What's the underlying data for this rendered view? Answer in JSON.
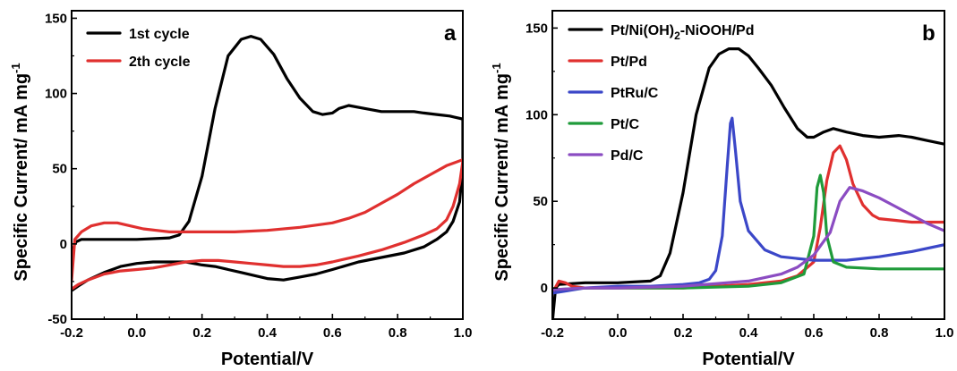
{
  "chart_data": [
    {
      "type": "line",
      "panel_label": "a",
      "xlabel": "Potential/V",
      "ylabel": "Specific Current/ mA mg",
      "ylabel_sup": "-1",
      "xlim": [
        -0.2,
        1.0
      ],
      "ylim": [
        -50,
        155
      ],
      "xticks": [
        -0.2,
        0.0,
        0.2,
        0.4,
        0.6,
        0.8,
        1.0
      ],
      "xtick_labels": [
        "-0.2",
        "0.0",
        "0.2",
        "0.4",
        "0.6",
        "0.8",
        "1.0"
      ],
      "yticks": [
        -50,
        0,
        50,
        100,
        150
      ],
      "ytick_labels": [
        "-50",
        "0",
        "50",
        "100",
        "150"
      ],
      "legend_position": "top-left",
      "series": [
        {
          "name": "1st cycle",
          "color": "#000000",
          "x": [
            -0.2,
            -0.19,
            -0.17,
            -0.1,
            0.0,
            0.1,
            0.13,
            0.16,
            0.2,
            0.24,
            0.28,
            0.32,
            0.35,
            0.38,
            0.42,
            0.46,
            0.5,
            0.54,
            0.57,
            0.6,
            0.62,
            0.65,
            0.7,
            0.75,
            0.8,
            0.85,
            0.88,
            0.92,
            0.96,
            1.0,
            1.0,
            0.99,
            0.97,
            0.95,
            0.92,
            0.88,
            0.82,
            0.75,
            0.68,
            0.6,
            0.55,
            0.5,
            0.45,
            0.4,
            0.36,
            0.32,
            0.28,
            0.24,
            0.2,
            0.15,
            0.1,
            0.05,
            0.0,
            -0.05,
            -0.1,
            -0.15,
            -0.18,
            -0.2
          ],
          "y": [
            -10,
            1,
            3,
            3,
            3,
            4,
            6,
            15,
            45,
            90,
            125,
            136,
            138,
            136,
            126,
            110,
            97,
            88,
            86,
            87,
            90,
            92,
            90,
            88,
            88,
            88,
            87,
            86,
            85,
            83,
            52,
            28,
            15,
            8,
            3,
            -2,
            -6,
            -9,
            -12,
            -17,
            -20,
            -22,
            -24,
            -23,
            -21,
            -19,
            -17,
            -15,
            -14,
            -12,
            -12,
            -12,
            -13,
            -15,
            -19,
            -24,
            -28,
            -31
          ]
        },
        {
          "name": "2th cycle",
          "color": "#e0302f",
          "x": [
            -0.2,
            -0.19,
            -0.17,
            -0.14,
            -0.1,
            -0.06,
            -0.02,
            0.02,
            0.06,
            0.1,
            0.2,
            0.3,
            0.4,
            0.5,
            0.6,
            0.65,
            0.7,
            0.75,
            0.8,
            0.85,
            0.9,
            0.95,
            1.0,
            1.0,
            0.99,
            0.97,
            0.95,
            0.92,
            0.88,
            0.82,
            0.75,
            0.68,
            0.6,
            0.55,
            0.5,
            0.45,
            0.4,
            0.35,
            0.3,
            0.25,
            0.2,
            0.15,
            0.1,
            0.05,
            0.0,
            -0.05,
            -0.1,
            -0.15,
            -0.18,
            -0.2
          ],
          "y": [
            -24,
            3,
            8,
            12,
            14,
            14,
            12,
            10,
            9,
            8,
            8,
            8,
            9,
            11,
            14,
            17,
            21,
            27,
            33,
            40,
            46,
            52,
            56,
            55,
            40,
            25,
            16,
            10,
            6,
            1,
            -4,
            -8,
            -12,
            -14,
            -15,
            -15,
            -14,
            -13,
            -12,
            -11,
            -11,
            -12,
            -14,
            -16,
            -17,
            -18,
            -20,
            -24,
            -27,
            -30
          ]
        }
      ]
    },
    {
      "type": "line",
      "panel_label": "b",
      "xlabel": "Potential/V",
      "ylabel": "Specific Current/ mA mg",
      "ylabel_sup": "-1",
      "xlim": [
        -0.2,
        1.0
      ],
      "ylim": [
        -18,
        160
      ],
      "xticks": [
        -0.2,
        0.0,
        0.2,
        0.4,
        0.6,
        0.8,
        1.0
      ],
      "xtick_labels": [
        "-0.2",
        "0.0",
        "0.2",
        "0.4",
        "0.6",
        "0.8",
        "1.0"
      ],
      "yticks": [
        0,
        50,
        100,
        150
      ],
      "ytick_labels": [
        "0",
        "50",
        "100",
        "150"
      ],
      "legend_position": "top-left",
      "series": [
        {
          "name": "Pt/Ni(OH)",
          "name_sub": "2",
          "name_tail": "-NiOOH/Pd",
          "color": "#000000",
          "x": [
            -0.2,
            -0.19,
            -0.18,
            -0.1,
            0.0,
            0.1,
            0.13,
            0.16,
            0.2,
            0.24,
            0.28,
            0.31,
            0.34,
            0.37,
            0.4,
            0.43,
            0.47,
            0.51,
            0.55,
            0.58,
            0.6,
            0.63,
            0.66,
            0.7,
            0.75,
            0.8,
            0.86,
            0.9,
            0.95,
            1.0
          ],
          "y": [
            -20,
            0,
            2,
            3,
            3,
            4,
            7,
            20,
            55,
            100,
            127,
            135,
            138,
            138,
            134,
            127,
            117,
            104,
            92,
            87,
            87,
            90,
            92,
            90,
            88,
            87,
            88,
            87,
            85,
            83
          ]
        },
        {
          "name": "Pt/Pd",
          "color": "#e0302f",
          "x": [
            -0.2,
            -0.18,
            -0.16,
            -0.14,
            -0.1,
            0.0,
            0.2,
            0.4,
            0.5,
            0.55,
            0.6,
            0.62,
            0.64,
            0.66,
            0.68,
            0.7,
            0.72,
            0.75,
            0.78,
            0.8,
            0.85,
            0.9,
            1.0
          ],
          "y": [
            -3,
            4,
            3,
            1,
            0,
            0,
            0,
            2,
            4,
            7,
            15,
            35,
            62,
            78,
            82,
            74,
            60,
            48,
            42,
            40,
            39,
            38,
            38
          ]
        },
        {
          "name": "PtRu/C",
          "color": "#3b47c8",
          "x": [
            -0.2,
            -0.1,
            0.0,
            0.1,
            0.2,
            0.25,
            0.28,
            0.3,
            0.32,
            0.335,
            0.345,
            0.35,
            0.36,
            0.375,
            0.4,
            0.45,
            0.5,
            0.6,
            0.7,
            0.8,
            0.9,
            1.0
          ],
          "y": [
            -3,
            0,
            1,
            1,
            2,
            3,
            5,
            10,
            30,
            70,
            95,
            98,
            80,
            50,
            33,
            22,
            18,
            16,
            16,
            18,
            21,
            25
          ]
        },
        {
          "name": "Pt/C",
          "color": "#1f9b3a",
          "x": [
            -0.2,
            -0.1,
            0.0,
            0.2,
            0.4,
            0.5,
            0.57,
            0.6,
            0.61,
            0.62,
            0.63,
            0.64,
            0.66,
            0.7,
            0.8,
            0.9,
            1.0
          ],
          "y": [
            -1,
            0,
            0,
            0,
            1,
            3,
            8,
            30,
            58,
            65,
            55,
            30,
            15,
            12,
            11,
            11,
            11
          ]
        },
        {
          "name": "Pd/C",
          "color": "#8b4cc2",
          "x": [
            -0.2,
            -0.1,
            0.0,
            0.2,
            0.4,
            0.5,
            0.55,
            0.6,
            0.65,
            0.68,
            0.71,
            0.75,
            0.8,
            0.85,
            0.9,
            0.95,
            1.0
          ],
          "y": [
            -1,
            0,
            0,
            1,
            4,
            8,
            12,
            19,
            32,
            50,
            58,
            56,
            52,
            47,
            42,
            37,
            33
          ]
        }
      ]
    }
  ]
}
